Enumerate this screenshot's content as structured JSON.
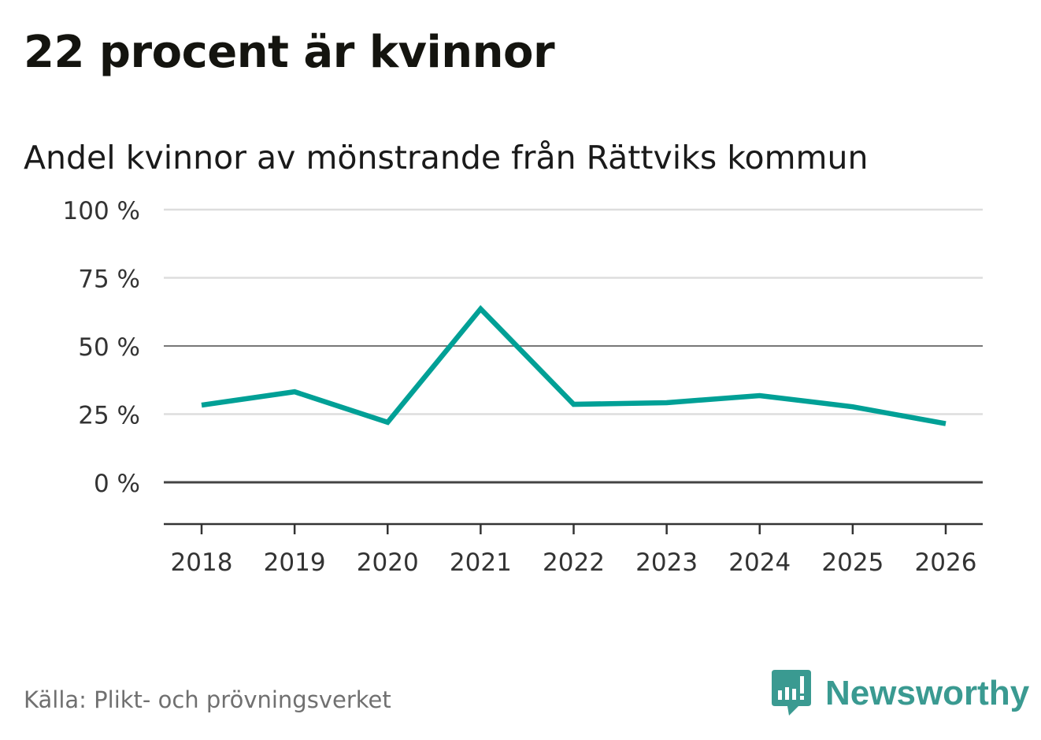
{
  "title": "22 procent är kvinnor",
  "source": "Källa: Plikt- och prövningsverket",
  "logo": {
    "text": "Newsworthy",
    "color": "#3a9a91"
  },
  "chart_data": {
    "type": "line",
    "title": "Andel kvinnor av mönstrande från Rättviks kommun",
    "xlabel": "",
    "ylabel": "",
    "x": [
      "2018",
      "2019",
      "2020",
      "2021",
      "2022",
      "2023",
      "2024",
      "2025",
      "2026"
    ],
    "series": [
      {
        "name": "Andel kvinnor",
        "values": [
          28.3,
          33.2,
          22.0,
          63.6,
          28.6,
          29.2,
          31.8,
          27.7,
          21.5
        ],
        "color": "#00a096"
      }
    ],
    "ylim": [
      0,
      100
    ],
    "yticks": [
      0,
      25,
      50,
      75,
      100
    ],
    "ytick_labels": [
      "0 %",
      "25 %",
      "50 %",
      "75 %",
      "100 %"
    ],
    "grid": true,
    "legend": "none"
  }
}
